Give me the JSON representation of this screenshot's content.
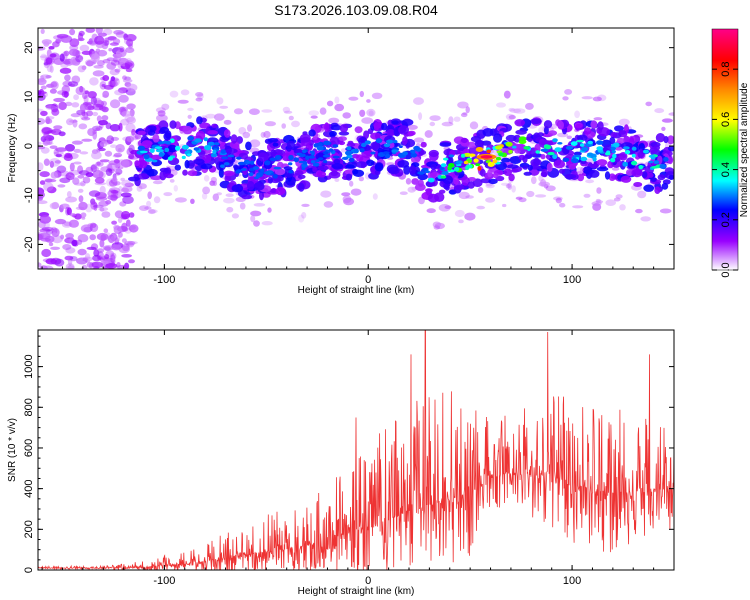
{
  "chart_data": [
    {
      "type": "heatmap",
      "title": "S173.2026.103.09.08.R04",
      "xlabel": "Height of straight line (km)",
      "ylabel": "Frequency (Hz)",
      "xlim": [
        -162,
        150
      ],
      "ylim": [
        -25,
        24
      ],
      "x_ticks": [
        -100,
        0,
        100
      ],
      "y_ticks": [
        -20,
        -10,
        0,
        10,
        20
      ],
      "colorbar": {
        "label": "Normalized spectral amplitude",
        "range": [
          0,
          0.96
        ],
        "ticks": [
          "0.0",
          "0.2",
          "0.4",
          "0.6",
          "0.8"
        ],
        "tick_values": [
          0,
          0.2,
          0.4,
          0.6,
          0.8
        ],
        "colors": [
          "#ffffff",
          "#9900ff",
          "#0000ff",
          "#00ffff",
          "#00ff00",
          "#ffff00",
          "#ff8800",
          "#ff0000",
          "#ff0088"
        ]
      },
      "ridge": {
        "description": "frequency center line of the bright band",
        "x": [
          -115,
          -100,
          -80,
          -60,
          -40,
          -20,
          0,
          20,
          30,
          40,
          60,
          80,
          100,
          120,
          145
        ],
        "y": [
          -2,
          -1,
          0,
          -5,
          -4,
          -1,
          -1,
          0,
          -6,
          -4,
          -2,
          0,
          -1,
          -1,
          -4
        ],
        "peak_amplitude": [
          0.35,
          0.4,
          0.35,
          0.3,
          0.3,
          0.3,
          0.35,
          0.3,
          0.35,
          0.5,
          0.96,
          0.45,
          0.4,
          0.4,
          0.45
        ]
      },
      "noise_region_x": [
        -162,
        -115
      ]
    },
    {
      "type": "line",
      "xlabel": "Height of straight line (km)",
      "ylabel": "SNR (10 * v/v)",
      "xlim": [
        -162,
        150
      ],
      "ylim": [
        0,
        1180
      ],
      "x_ticks": [
        -100,
        0,
        100
      ],
      "y_ticks": [
        0,
        200,
        400,
        600,
        800,
        1000
      ],
      "color": "#ee3333",
      "series": [
        {
          "name": "SNR",
          "envelope_x": [
            -162,
            -130,
            -110,
            -90,
            -70,
            -50,
            -30,
            -10,
            10,
            30,
            50,
            60,
            80,
            100,
            120,
            150
          ],
          "envelope_base": [
            10,
            10,
            15,
            30,
            60,
            90,
            120,
            180,
            250,
            320,
            380,
            470,
            480,
            420,
            380,
            400
          ],
          "envelope_amplitude": [
            8,
            10,
            30,
            70,
            140,
            180,
            230,
            330,
            480,
            560,
            520,
            250,
            400,
            500,
            500,
            350
          ],
          "peaks": [
            {
              "x": 28,
              "y": 1180
            },
            {
              "x": 88,
              "y": 1170
            },
            {
              "x": 21,
              "y": 1060
            },
            {
              "x": 138,
              "y": 1060
            },
            {
              "x": -6,
              "y": 750
            }
          ]
        }
      ]
    }
  ]
}
